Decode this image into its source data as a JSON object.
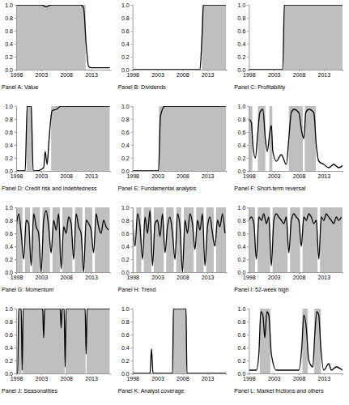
{
  "chart_data": [
    {
      "type": "line",
      "title": "Panel A: Value",
      "color": "#000000",
      "x": [
        1998,
        2003,
        2004,
        2005,
        2011,
        2011.5,
        2012,
        2012.5,
        2013,
        2016.75
      ],
      "values": [
        1,
        1,
        0.97,
        1,
        1,
        0.95,
        0.4,
        0.05,
        0.03,
        0.03
      ],
      "regions": [
        [
          1998,
          2011.9
        ]
      ],
      "xlim": [
        1998,
        2016.75
      ],
      "xticks": [
        1998,
        2003,
        2008,
        2013
      ],
      "ylim": [
        0,
        1
      ],
      "yticks": [
        {
          "value": 0,
          "label": "0.0"
        },
        {
          "value": 0.2,
          "label": "0.2"
        },
        {
          "value": 0.4,
          "label": "0.4"
        },
        {
          "value": 0.6,
          "label": "0.6"
        },
        {
          "value": 0.8,
          "label": "0.8"
        },
        {
          "value": 1,
          "label": "1.0"
        }
      ]
    },
    {
      "type": "line",
      "title": "Panel B: Dividends",
      "color": "#000000",
      "x": [
        1998,
        2011.5,
        2011.9,
        2012.2,
        2016.75
      ],
      "values": [
        0,
        0,
        0.5,
        1,
        1
      ],
      "regions": [
        [
          2011.9,
          2016.75
        ]
      ],
      "xlim": [
        1998,
        2016.75
      ],
      "xticks": [
        1998,
        2003,
        2008,
        2013
      ],
      "ylim": [
        0,
        1
      ],
      "yticks": [
        {
          "value": 0,
          "label": "0.0"
        },
        {
          "value": 0.2,
          "label": "0.2"
        },
        {
          "value": 0.4,
          "label": "0.4"
        },
        {
          "value": 0.6,
          "label": "0.6"
        },
        {
          "value": 0.8,
          "label": "0.8"
        },
        {
          "value": 1,
          "label": "1.0"
        }
      ]
    },
    {
      "type": "line",
      "title": "Panel C: Profitability",
      "color": "#000000",
      "x": [
        1998,
        2004.8,
        2005.1,
        2016.75
      ],
      "values": [
        0,
        0,
        1,
        1
      ],
      "regions": [
        [
          2005,
          2016.75
        ]
      ],
      "xlim": [
        1998,
        2016.75
      ],
      "xticks": [
        1998,
        2003,
        2008,
        2013
      ],
      "ylim": [
        0,
        1
      ],
      "yticks": [
        {
          "value": 0,
          "label": "0.0"
        },
        {
          "value": 0.2,
          "label": "0.2"
        },
        {
          "value": 0.4,
          "label": "0.4"
        },
        {
          "value": 0.6,
          "label": "0.6"
        },
        {
          "value": 0.8,
          "label": "0.8"
        },
        {
          "value": 1,
          "label": "1.0"
        }
      ]
    },
    {
      "type": "line",
      "title": "Panel D: Credit risk and indebtedness",
      "color": "#000000",
      "x": [
        1998,
        1999.8,
        2000.2,
        2001,
        2001.4,
        2002,
        2003.5,
        2003.8,
        2004.2,
        2004.5,
        2004.8,
        2005.2,
        2006,
        2007,
        2016.75
      ],
      "values": [
        0,
        0,
        1,
        1,
        0,
        0,
        0.05,
        0.3,
        0.1,
        0.4,
        0.7,
        0.93,
        0.95,
        1,
        1
      ],
      "regions": [
        [
          2000.1,
          2001.2
        ],
        [
          2005,
          2016.75
        ]
      ],
      "xlim": [
        1998,
        2016.75
      ],
      "xticks": [
        1998,
        2003,
        2008,
        2013
      ],
      "ylim": [
        0,
        1
      ],
      "yticks": [
        {
          "value": 0,
          "label": "0.0"
        },
        {
          "value": 0.2,
          "label": "0.2"
        },
        {
          "value": 0.4,
          "label": "0.4"
        },
        {
          "value": 0.6,
          "label": "0.6"
        },
        {
          "value": 0.8,
          "label": "0.8"
        },
        {
          "value": 1,
          "label": "1.0"
        }
      ]
    },
    {
      "type": "line",
      "title": "Panel E: Fundamental analysis",
      "color": "#000000",
      "x": [
        1998,
        2003.2,
        2003.6,
        2004.5,
        2016.75
      ],
      "values": [
        0,
        0,
        0.85,
        1,
        1
      ],
      "regions": [
        [
          2003.3,
          2016.75
        ]
      ],
      "xlim": [
        1998,
        2016.75
      ],
      "xticks": [
        1998,
        2003,
        2008,
        2013
      ],
      "ylim": [
        0,
        1
      ],
      "yticks": [
        {
          "value": 0,
          "label": "0.0"
        },
        {
          "value": 0.2,
          "label": "0.2"
        },
        {
          "value": 0.4,
          "label": "0.4"
        },
        {
          "value": 0.6,
          "label": "0.6"
        },
        {
          "value": 0.8,
          "label": "0.8"
        },
        {
          "value": 1,
          "label": "1.0"
        }
      ]
    },
    {
      "type": "line",
      "title": "Panel F: Short-term reversal",
      "color": "#000000",
      "x": [
        1998,
        1998.5,
        1998.8,
        1999.3,
        1999.8,
        2000.2,
        2000.8,
        2001.3,
        2001.7,
        2002.2,
        2002.5,
        2002.8,
        2003.5,
        2004.5,
        2005.5,
        2006,
        2006.5,
        2007,
        2008,
        2008.6,
        2009,
        2009.4,
        2010,
        2011,
        2011.5,
        2012,
        2013,
        2014,
        2015,
        2016,
        2016.75
      ],
      "values": [
        0.8,
        0.75,
        0.4,
        0.2,
        0.6,
        0.9,
        0.95,
        0.5,
        0.3,
        0.6,
        0.7,
        0.3,
        0.15,
        0.25,
        0.1,
        0.5,
        0.9,
        0.95,
        0.9,
        0.6,
        0.5,
        0.9,
        0.95,
        0.9,
        0.4,
        0.15,
        0.1,
        0.05,
        0.1,
        0.05,
        0.08
      ],
      "regions": [
        [
          1998,
          1998.7
        ],
        [
          1999.8,
          2001.3
        ],
        [
          2002.1,
          2002.7
        ],
        [
          2006,
          2008.8
        ],
        [
          2009.2,
          2011.4
        ]
      ],
      "xlim": [
        1998,
        2016.75
      ],
      "xticks": [
        1998,
        2003,
        2008,
        2013
      ],
      "ylim": [
        0,
        1
      ],
      "yticks": [
        {
          "value": 0,
          "label": "0.0"
        },
        {
          "value": 0.2,
          "label": "0.2"
        },
        {
          "value": 0.4,
          "label": "0.4"
        },
        {
          "value": 0.6,
          "label": "0.6"
        },
        {
          "value": 0.8,
          "label": "0.8"
        },
        {
          "value": 1,
          "label": "1.0"
        }
      ]
    },
    {
      "type": "line",
      "title": "Panel G: Momentum",
      "color": "#000000",
      "x": [
        1998,
        1998.5,
        1999,
        1999.5,
        2000,
        2000.5,
        2001,
        2001.5,
        2002,
        2002.5,
        2003,
        2003.5,
        2004,
        2004.5,
        2005,
        2005.5,
        2006,
        2006.5,
        2007,
        2007.5,
        2008,
        2008.5,
        2009,
        2009.5,
        2010,
        2010.5,
        2011,
        2011.5,
        2012,
        2012.5,
        2013,
        2013.5,
        2014,
        2014.5,
        2015,
        2015.5,
        2016,
        2016.5
      ],
      "values": [
        0.7,
        0.9,
        0.6,
        0.2,
        0.8,
        0.75,
        0.1,
        0.9,
        0.7,
        0.6,
        0.0,
        0.8,
        0.95,
        0.7,
        0.3,
        0.8,
        0.65,
        0.9,
        0.05,
        0.7,
        0.6,
        0.85,
        0.75,
        0.2,
        0.9,
        0.7,
        0.6,
        0.0,
        0.8,
        0.75,
        0.65,
        0.3,
        0.9,
        0.7,
        0.6,
        0.8,
        0.7,
        0.65
      ],
      "regions": [
        [
          1998,
          1999.25
        ],
        [
          1999.75,
          2000.75
        ],
        [
          2001.25,
          2002.75
        ],
        [
          2003.25,
          2004.75
        ],
        [
          2005.25,
          2006.75
        ],
        [
          2007.25,
          2009.25
        ],
        [
          2009.75,
          2011.25
        ],
        [
          2011.75,
          2013.25
        ],
        [
          2013.75,
          2016.75
        ]
      ],
      "xlim": [
        1998,
        2016.75
      ],
      "xticks": [
        1998,
        2003,
        2008,
        2013
      ],
      "ylim": [
        0,
        1
      ],
      "yticks": [
        {
          "value": 0,
          "label": "0.0"
        },
        {
          "value": 0.2,
          "label": "0.2"
        },
        {
          "value": 0.4,
          "label": "0.4"
        },
        {
          "value": 0.6,
          "label": "0.6"
        },
        {
          "value": 0.8,
          "label": "0.8"
        },
        {
          "value": 1,
          "label": "1.0"
        }
      ]
    },
    {
      "type": "line",
      "title": "Panel H: Trend",
      "color": "#000000",
      "x": [
        1998,
        1998.5,
        1999,
        1999.5,
        2000,
        2000.5,
        2001,
        2001.5,
        2002,
        2002.5,
        2003,
        2003.5,
        2004,
        2004.5,
        2005,
        2005.5,
        2006,
        2006.5,
        2007,
        2007.5,
        2008,
        2008.5,
        2009,
        2009.5,
        2010,
        2010.5,
        2011,
        2011.5,
        2012,
        2012.5,
        2013,
        2013.5,
        2014,
        2014.5,
        2015,
        2015.5,
        2016,
        2016.5
      ],
      "values": [
        0.8,
        0.4,
        0.9,
        0.7,
        0.2,
        0.85,
        0.6,
        0.95,
        0.1,
        0.75,
        0.8,
        0.55,
        0.9,
        0.3,
        0.7,
        0.85,
        0.6,
        0.2,
        0.9,
        0.7,
        0.0,
        0.8,
        0.6,
        0.9,
        0.75,
        0.35,
        0.8,
        0.65,
        0.9,
        0.1,
        0.7,
        0.85,
        0.6,
        0.4,
        0.8,
        0.7,
        0.9,
        0.6
      ],
      "regions": [
        [
          1998,
          1998.25
        ],
        [
          1998.75,
          1999.75
        ],
        [
          2000.25,
          2001.75
        ],
        [
          2002.25,
          2004.25
        ],
        [
          2004.75,
          2006.25
        ],
        [
          2006.75,
          2007.75
        ],
        [
          2008.25,
          2010.25
        ],
        [
          2010.75,
          2012.25
        ],
        [
          2012.75,
          2014.25
        ],
        [
          2014.75,
          2016.75
        ]
      ],
      "xlim": [
        1998,
        2016.75
      ],
      "xticks": [
        1998,
        2003,
        2008,
        2013
      ],
      "ylim": [
        0,
        1
      ],
      "yticks": [
        {
          "value": 0,
          "label": "0.0"
        },
        {
          "value": 0.2,
          "label": "0.2"
        },
        {
          "value": 0.4,
          "label": "0.4"
        },
        {
          "value": 0.6,
          "label": "0.6"
        },
        {
          "value": 0.8,
          "label": "0.8"
        },
        {
          "value": 1,
          "label": "1.0"
        }
      ]
    },
    {
      "type": "line",
      "title": "Panel I: 52-week high",
      "color": "#000000",
      "x": [
        1998,
        1998.5,
        1999,
        1999.5,
        2000,
        2000.5,
        2001,
        2001.5,
        2002,
        2002.5,
        2003,
        2003.5,
        2004,
        2004.5,
        2005,
        2005.5,
        2006,
        2006.5,
        2007,
        2007.5,
        2008,
        2008.5,
        2009,
        2009.5,
        2010,
        2010.5,
        2011,
        2011.5,
        2012,
        2012.5,
        2013,
        2013.5,
        2014,
        2014.5,
        2015,
        2015.5,
        2016,
        2016.5
      ],
      "values": [
        0.8,
        0.85,
        0.75,
        0.2,
        0.85,
        0.8,
        0.9,
        0.75,
        0.85,
        0.1,
        0.8,
        0.9,
        0.85,
        0.8,
        0.75,
        0.85,
        0.3,
        0.8,
        0.9,
        0.85,
        0.8,
        0.4,
        0.85,
        0.8,
        0.9,
        0.85,
        0.75,
        0.8,
        0.2,
        0.85,
        0.8,
        0.9,
        0.85,
        0.8,
        0.75,
        0.85,
        0.8,
        0.85
      ],
      "regions": [
        [
          1998,
          1999.25
        ],
        [
          1999.75,
          2002.25
        ],
        [
          2002.75,
          2005.75
        ],
        [
          2006.25,
          2008.25
        ],
        [
          2008.75,
          2011.75
        ],
        [
          2012.25,
          2016.75
        ]
      ],
      "xlim": [
        1998,
        2016.75
      ],
      "xticks": [
        1998,
        2003,
        2008,
        2013
      ],
      "ylim": [
        0,
        1
      ],
      "yticks": [
        {
          "value": 0,
          "label": "0.0"
        },
        {
          "value": 0.2,
          "label": "0.2"
        },
        {
          "value": 0.4,
          "label": "0.4"
        },
        {
          "value": 0.6,
          "label": "0.6"
        },
        {
          "value": 0.8,
          "label": "0.8"
        },
        {
          "value": 1,
          "label": "1.0"
        }
      ]
    },
    {
      "type": "line",
      "title": "Panel J: Seasonalities",
      "color": "#000000",
      "x": [
        1998,
        1998.3,
        1998.5,
        1999,
        1999.2,
        1999.4,
        2002,
        2003.3,
        2003.5,
        2003.7,
        2006.8,
        2007,
        2007.2,
        2007.6,
        2007.8,
        2008,
        2011.5,
        2011.8,
        2012,
        2012.2,
        2016.75
      ],
      "values": [
        0.0,
        0.0,
        1.0,
        1.0,
        0.05,
        1.0,
        1.0,
        1.0,
        0.55,
        1.0,
        1.0,
        0.7,
        1.0,
        1.0,
        0.1,
        1.0,
        1.0,
        1.0,
        0.3,
        1.0,
        1.0
      ],
      "regions": [
        [
          1998.4,
          1999.1
        ],
        [
          1999.3,
          2007.7
        ],
        [
          2007.9,
          2011.9
        ],
        [
          2012.1,
          2016.75
        ]
      ],
      "xlim": [
        1998,
        2016.75
      ],
      "xticks": [
        1998,
        2003,
        2008,
        2013
      ],
      "ylim": [
        0,
        1
      ],
      "yticks": [
        {
          "value": 0,
          "label": "0.0"
        },
        {
          "value": 0.2,
          "label": "0.2"
        },
        {
          "value": 0.4,
          "label": "0.4"
        },
        {
          "value": 0.6,
          "label": "0.6"
        },
        {
          "value": 0.8,
          "label": "0.8"
        },
        {
          "value": 1,
          "label": "1.0"
        }
      ]
    },
    {
      "type": "line",
      "title": "Panel K: Analyst coverage",
      "color": "#000000",
      "x": [
        1998,
        2001.5,
        2001.8,
        2002.1,
        2006,
        2006.2,
        2008.7,
        2008.9,
        2016.75
      ],
      "values": [
        0,
        0,
        0.38,
        0,
        0,
        1,
        1,
        0,
        0
      ],
      "regions": [
        [
          2006.1,
          2008.8
        ]
      ],
      "xlim": [
        1998,
        2016.75
      ],
      "xticks": [
        1998,
        2003,
        2008,
        2013
      ],
      "ylim": [
        0,
        1
      ],
      "yticks": [
        {
          "value": 0,
          "label": "0.0"
        },
        {
          "value": 0.2,
          "label": "0.2"
        },
        {
          "value": 0.4,
          "label": "0.4"
        },
        {
          "value": 0.6,
          "label": "0.6"
        },
        {
          "value": 0.8,
          "label": "0.8"
        },
        {
          "value": 1,
          "label": "1.0"
        }
      ]
    },
    {
      "type": "line",
      "title": "Panel L: Market frictions and others",
      "color": "#000000",
      "x": [
        1998,
        1999.5,
        2000,
        2000.4,
        2000.8,
        2001.2,
        2001.6,
        2002,
        2002.5,
        2003.5,
        2008,
        2008.6,
        2009,
        2009.5,
        2010,
        2010.8,
        2011.2,
        2011.6,
        2012,
        2012.4,
        2013,
        2014,
        2014.5,
        2015.5,
        2016.75
      ],
      "values": [
        0.05,
        0.05,
        0.3,
        0.95,
        0.9,
        0.55,
        0.95,
        0.9,
        0.3,
        0.05,
        0.05,
        0.4,
        0.9,
        0.7,
        0.2,
        0.1,
        0.6,
        0.95,
        0.9,
        0.4,
        0.05,
        0.15,
        0.05,
        0.1,
        0.05
      ],
      "regions": [
        [
          2000.2,
          2002.3
        ],
        [
          2008.7,
          2009.8
        ],
        [
          2011.1,
          2012.4
        ]
      ],
      "xlim": [
        1998,
        2016.75
      ],
      "xticks": [
        1998,
        2003,
        2008,
        2013
      ],
      "ylim": [
        0,
        1
      ],
      "yticks": [
        {
          "value": 0,
          "label": "0.0"
        },
        {
          "value": 0.2,
          "label": "0.2"
        },
        {
          "value": 0.4,
          "label": "0.4"
        },
        {
          "value": 0.6,
          "label": "0.6"
        },
        {
          "value": 0.8,
          "label": "0.8"
        },
        {
          "value": 1,
          "label": "1.0"
        }
      ]
    }
  ]
}
